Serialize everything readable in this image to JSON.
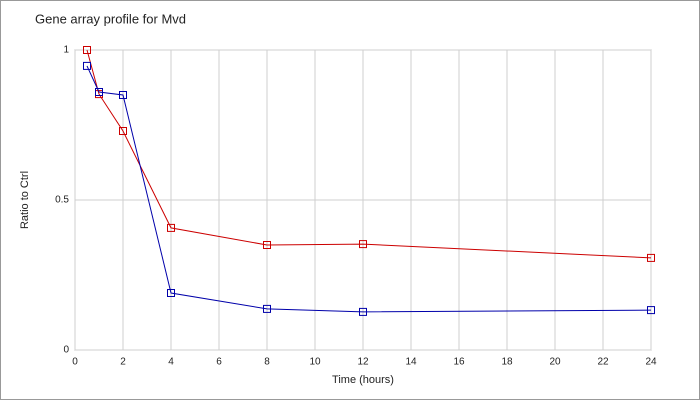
{
  "chart_data": {
    "type": "line",
    "title": "Gene array profile for Mvd",
    "xlabel": "Time (hours)",
    "ylabel": "Ratio to Ctrl",
    "x": [
      0.5,
      1,
      2,
      4,
      8,
      12,
      24
    ],
    "series": [
      {
        "color": "#cc0000",
        "values": [
          1.0,
          0.853,
          0.73,
          0.407,
          0.35,
          0.353,
          0.307
        ]
      },
      {
        "color": "#0000aa",
        "values": [
          0.947,
          0.86,
          0.85,
          0.19,
          0.137,
          0.127,
          0.133
        ]
      }
    ],
    "xlim": [
      0,
      24
    ],
    "xticks": [
      0,
      2,
      4,
      6,
      8,
      10,
      12,
      14,
      16,
      18,
      20,
      22,
      24
    ],
    "ylim": [
      0,
      1
    ],
    "yticks": [
      0,
      0.5,
      1
    ],
    "grid": true
  }
}
